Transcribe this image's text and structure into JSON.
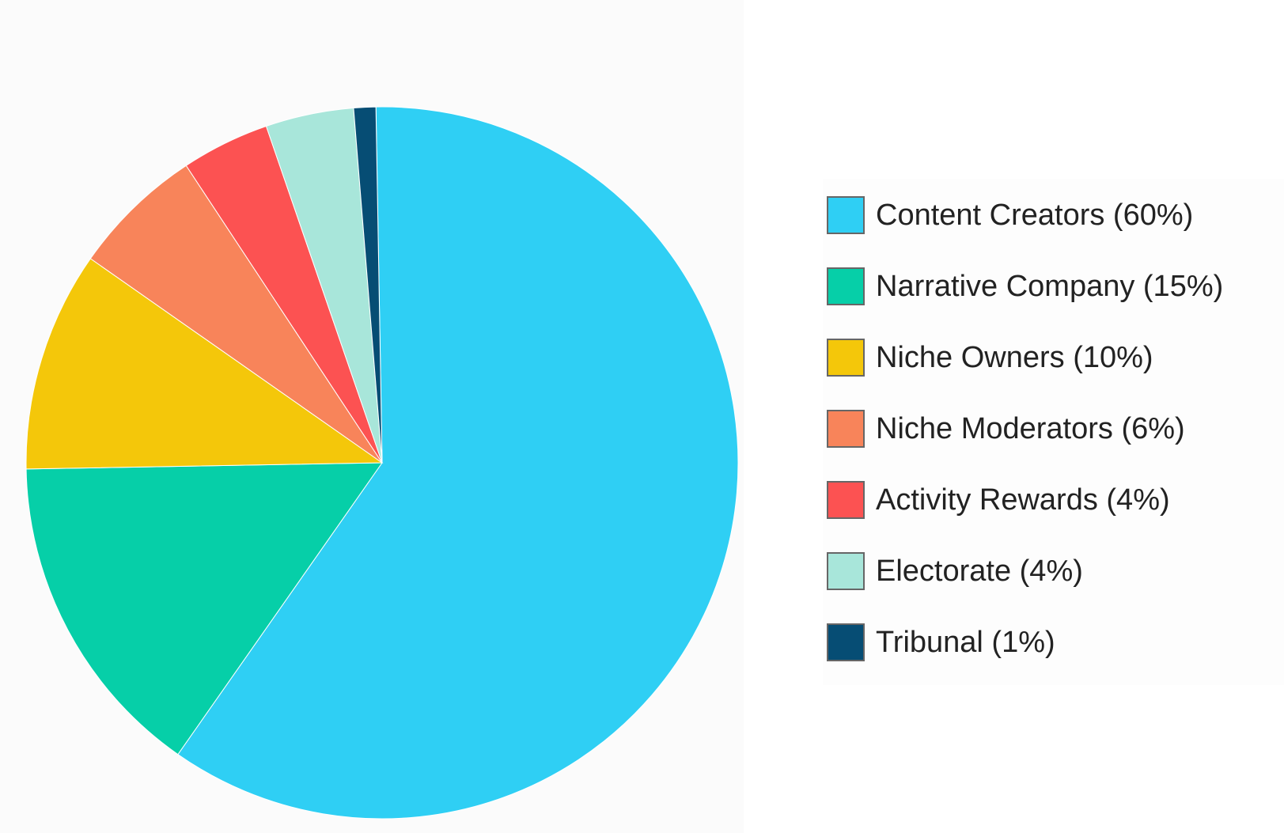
{
  "chart_data": {
    "type": "pie",
    "start_angle_deg": -1,
    "direction": "clockwise",
    "legend_position": "right",
    "slices": [
      {
        "label": "Content Creators (60%)",
        "value": 60,
        "color": "#2fcff4"
      },
      {
        "label": "Narrative Company (15%)",
        "value": 15,
        "color": "#06cfa8"
      },
      {
        "label": "Niche Owners (10%)",
        "value": 10,
        "color": "#f4c70a"
      },
      {
        "label": "Niche Moderators (6%)",
        "value": 6,
        "color": "#f8845a"
      },
      {
        "label": "Activity Rewards (4%)",
        "value": 4,
        "color": "#fc5252"
      },
      {
        "label": "Electorate (4%)",
        "value": 4,
        "color": "#a8e6da"
      },
      {
        "label": "Tribunal (1%)",
        "value": 1,
        "color": "#064d74"
      }
    ]
  }
}
